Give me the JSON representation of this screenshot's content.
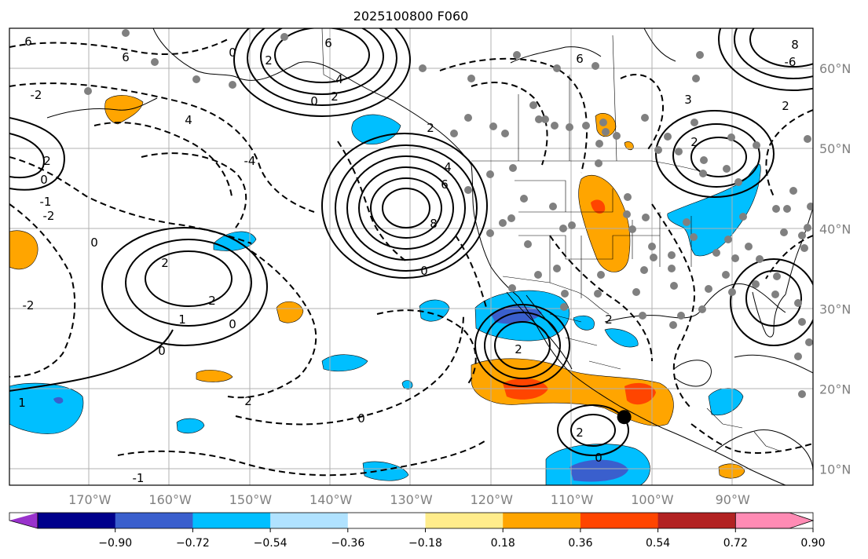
{
  "title": "2025100800 F060",
  "map": {
    "lon_range": [
      -180,
      -80
    ],
    "lat_range": [
      8,
      65
    ],
    "lon_ticks": [
      {
        "value": -170,
        "label": "170°W"
      },
      {
        "value": -160,
        "label": "160°W"
      },
      {
        "value": -150,
        "label": "150°W"
      },
      {
        "value": -140,
        "label": "140°W"
      },
      {
        "value": -130,
        "label": "130°W"
      },
      {
        "value": -120,
        "label": "120°W"
      },
      {
        "value": -110,
        "label": "110°W"
      },
      {
        "value": -100,
        "label": "100°W"
      },
      {
        "value": -90,
        "label": "90°W"
      }
    ],
    "lat_ticks": [
      {
        "value": 60,
        "label": "60°N"
      },
      {
        "value": 50,
        "label": "50°N"
      },
      {
        "value": 40,
        "label": "40°N"
      },
      {
        "value": 30,
        "label": "30°N"
      },
      {
        "value": 20,
        "label": "20°N"
      },
      {
        "value": 10,
        "label": "10°N"
      }
    ],
    "contour_labels": [
      "6",
      "6",
      "6",
      "4",
      "2",
      "0",
      "2",
      "4",
      "6",
      "8",
      "2",
      "1",
      "0",
      "2",
      "0",
      "2",
      "0",
      "2",
      "1",
      "2",
      "3",
      "2",
      "4",
      "6",
      "8",
      "-2",
      "-4",
      "-6",
      "0",
      "2",
      "2",
      "0",
      "-2",
      "-1",
      "0",
      "2",
      "2",
      "0",
      "-2",
      "0",
      "-1"
    ],
    "station_marker": {
      "lon": -103.5,
      "lat": 16.5,
      "color": "#000000"
    },
    "station_dots_color": "#808080"
  },
  "colorbar": {
    "levels": [
      "−0.90",
      "−0.72",
      "−0.54",
      "−0.36",
      "−0.18",
      "0.18",
      "0.36",
      "0.54",
      "0.72",
      "0.90"
    ],
    "colors": [
      "#9932cc",
      "#00008b",
      "#3a5fcd",
      "#00bfff",
      "#b0e2ff",
      "#ffffff",
      "#ffec8b",
      "#ffa500",
      "#ff4500",
      "#b22222",
      "#ff8bb4"
    ]
  },
  "shading": {
    "neg_light": "#b0e2ff",
    "neg_mid": "#00bfff",
    "neg_dark": "#3a5fcd",
    "pos_light": "#ffec8b",
    "pos_mid": "#ffa500",
    "pos_dark": "#ff4500"
  }
}
